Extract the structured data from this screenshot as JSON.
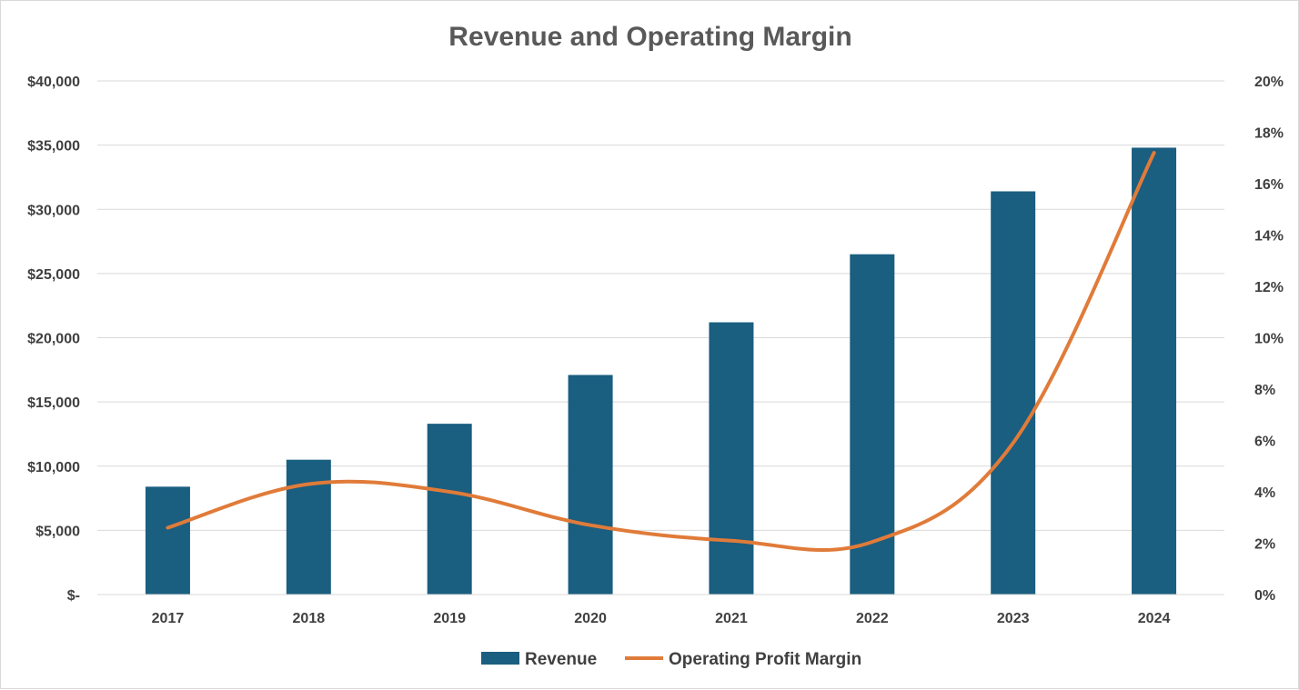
{
  "chart_data": {
    "type": "bar",
    "title": "Revenue and Operating Margin",
    "categories": [
      "2017",
      "2018",
      "2019",
      "2020",
      "2021",
      "2022",
      "2023",
      "2024"
    ],
    "series": [
      {
        "name": "Revenue",
        "type": "bar",
        "axis": "left",
        "color": "#1a5e80",
        "values": [
          8400,
          10500,
          13300,
          17100,
          21200,
          26500,
          31400,
          34800
        ]
      },
      {
        "name": "Operating Profit Margin",
        "type": "line",
        "axis": "right",
        "color": "#e07b39",
        "values": [
          2.6,
          4.3,
          4.0,
          2.7,
          2.1,
          2.05,
          5.9,
          17.2
        ]
      }
    ],
    "y_left": {
      "min": 0,
      "max": 40000,
      "ticks": [
        0,
        5000,
        10000,
        15000,
        20000,
        25000,
        30000,
        35000,
        40000
      ],
      "tick_labels": [
        "$-",
        "$5,000",
        "$10,000",
        "$15,000",
        "$20,000",
        "$25,000",
        "$30,000",
        "$35,000",
        "$40,000"
      ]
    },
    "y_right": {
      "min": 0,
      "max": 20,
      "tick_labels": [
        "0%",
        "2%",
        "4%",
        "6%",
        "8%",
        "10%",
        "12%",
        "14%",
        "16%",
        "18%",
        "20%"
      ]
    },
    "grid": true,
    "legend_position": "bottom"
  }
}
